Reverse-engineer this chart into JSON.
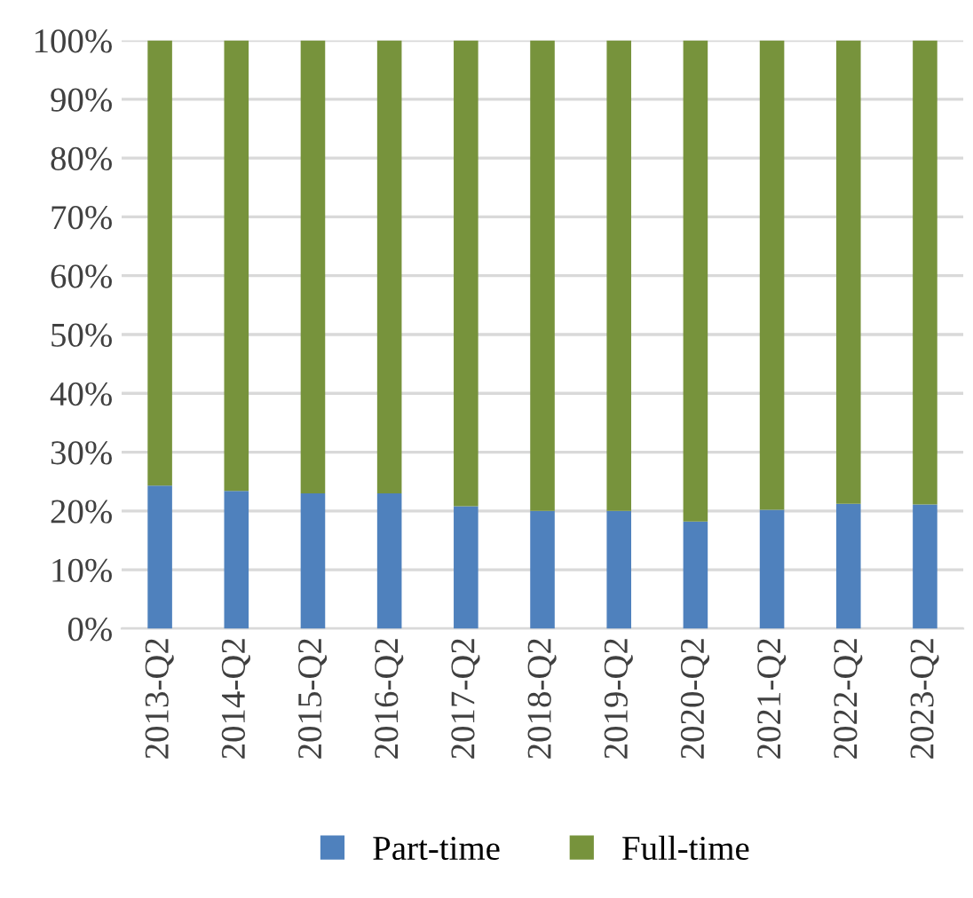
{
  "chart_data": {
    "type": "bar",
    "stacked": true,
    "categories": [
      "2013-Q2",
      "2014-Q2",
      "2015-Q2",
      "2016-Q2",
      "2017-Q2",
      "2018-Q2",
      "2019-Q2",
      "2020-Q2",
      "2021-Q2",
      "2022-Q2",
      "2023-Q2"
    ],
    "series": [
      {
        "name": "Part-time",
        "color": "#4f81bd",
        "values": [
          24.3,
          23.4,
          23.0,
          23.0,
          20.8,
          20.0,
          20.0,
          18.2,
          20.2,
          21.2,
          21.1
        ]
      },
      {
        "name": "Full-time",
        "color": "#77933c",
        "values": [
          75.7,
          76.6,
          77.0,
          77.0,
          79.2,
          80.0,
          80.0,
          81.8,
          79.8,
          78.8,
          78.9
        ]
      }
    ],
    "ylim": [
      0,
      100
    ],
    "yticks": [
      {
        "value": 0,
        "label": "0%"
      },
      {
        "value": 10,
        "label": "10%"
      },
      {
        "value": 20,
        "label": "20%"
      },
      {
        "value": 30,
        "label": "30%"
      },
      {
        "value": 40,
        "label": "40%"
      },
      {
        "value": 50,
        "label": "50%"
      },
      {
        "value": 60,
        "label": "60%"
      },
      {
        "value": 70,
        "label": "70%"
      },
      {
        "value": 80,
        "label": "80%"
      },
      {
        "value": 90,
        "label": "90%"
      },
      {
        "value": 100,
        "label": "100%"
      }
    ],
    "grid": "y",
    "legend": "bottom"
  }
}
